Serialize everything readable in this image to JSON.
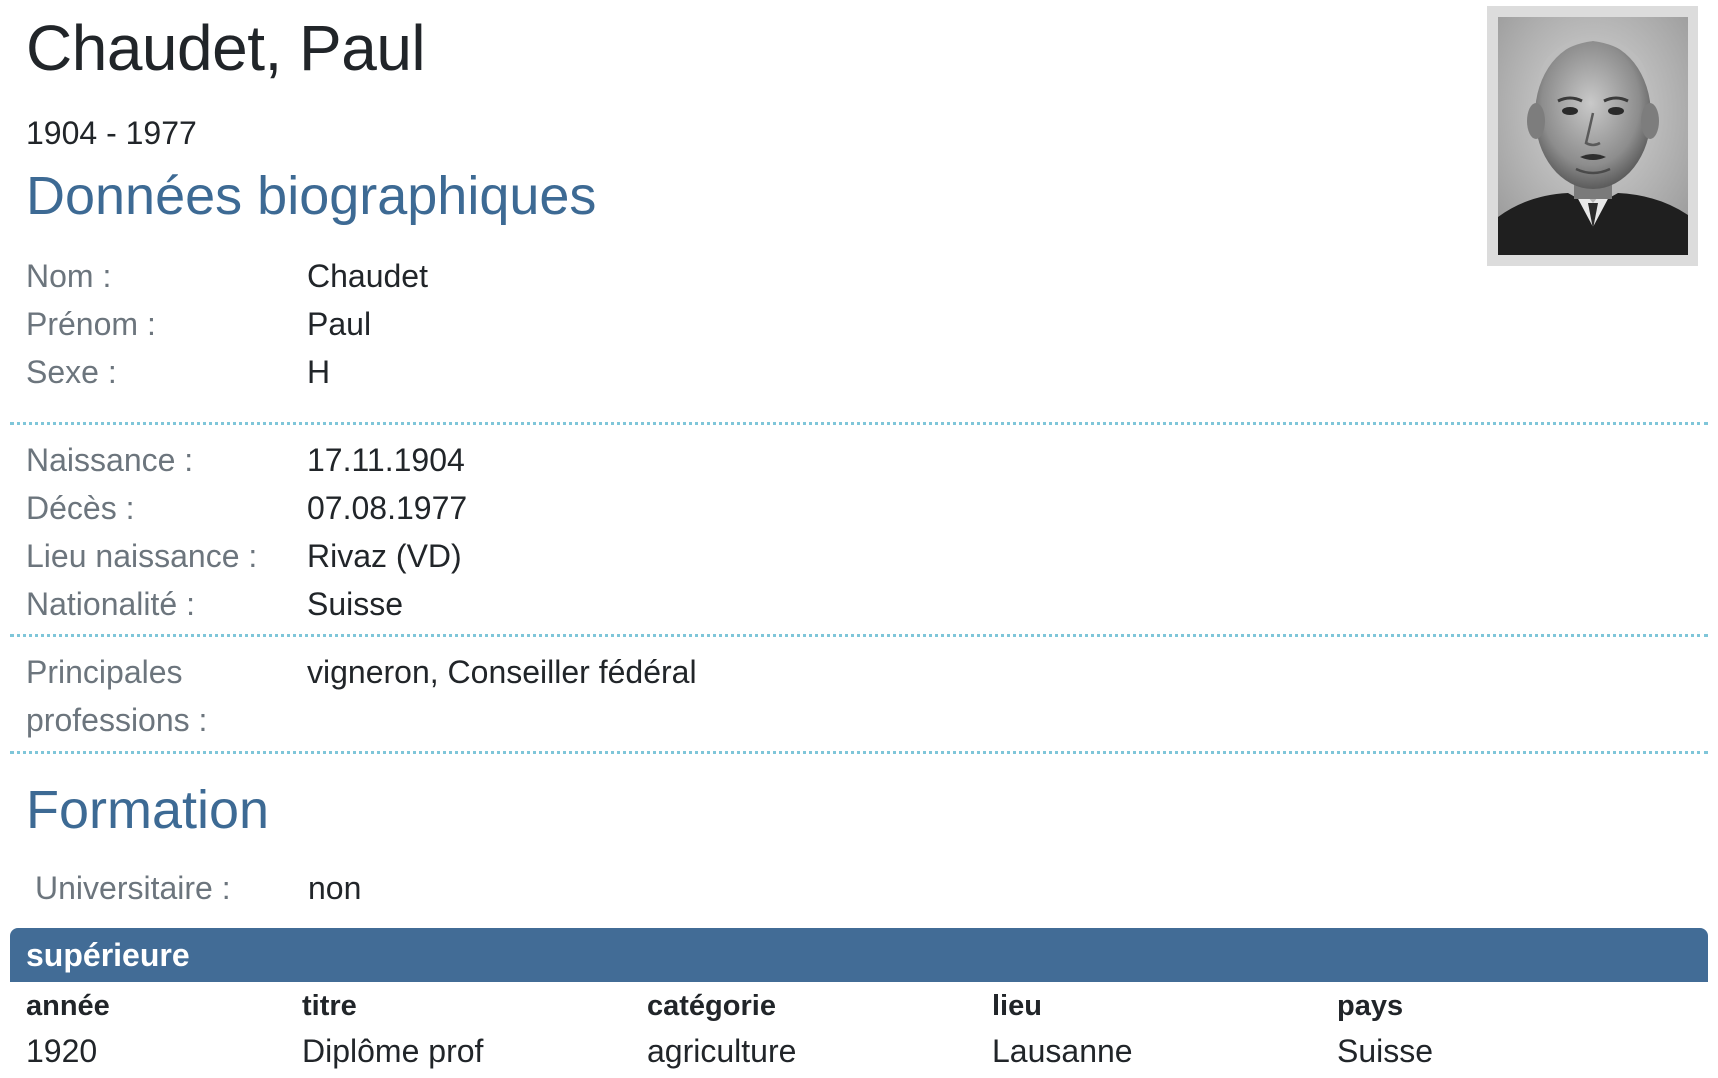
{
  "person": {
    "name": "Chaudet, Paul",
    "dates": "1904 - 1977"
  },
  "bio": {
    "heading": "Données biographiques",
    "group1": [
      {
        "label": "Nom :",
        "value": "Chaudet"
      },
      {
        "label": "Prénom :",
        "value": "Paul"
      },
      {
        "label": "Sexe :",
        "value": "H"
      }
    ],
    "group2": [
      {
        "label": "Naissance :",
        "value": "17.11.1904"
      },
      {
        "label": "Décès :",
        "value": "07.08.1977"
      },
      {
        "label": "Lieu naissance :",
        "value": "Rivaz (VD)"
      },
      {
        "label": "Nationalité :",
        "value": "Suisse"
      }
    ],
    "professions": {
      "label_line1": "Principales",
      "label_line2": "professions :",
      "value": "vigneron, Conseiller fédéral"
    }
  },
  "formation": {
    "heading": "Formation",
    "university": {
      "label": "Universitaire :",
      "value": "non"
    },
    "table": {
      "title": "supérieure",
      "columns": [
        "année",
        "titre",
        "catégorie",
        "lieu",
        "pays"
      ],
      "rows": [
        [
          "1920",
          "Diplôme prof",
          "agriculture",
          "Lausanne",
          "Suisse"
        ]
      ]
    }
  }
}
